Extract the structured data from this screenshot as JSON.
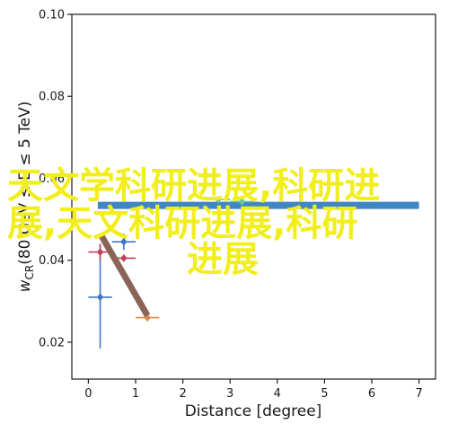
{
  "chart_data": {
    "type": "scatter",
    "xlabel": "Distance [degree]",
    "ylabel": "w",
    "ylabel_sub": "CR",
    "ylabel_rest": "(80 GeV ≤ E ≤ 5 TeV)",
    "xlim": [
      -0.35,
      7.35
    ],
    "ylim": [
      0.011,
      0.1
    ],
    "xticks": [
      0,
      1,
      2,
      3,
      4,
      5,
      6,
      7
    ],
    "yticks": [
      0.02,
      0.04,
      0.06,
      0.08,
      0.1
    ],
    "xtick_labels": [
      "0",
      "1",
      "2",
      "3",
      "4",
      "5",
      "6",
      "7"
    ],
    "ytick_labels": [
      "0.02",
      "0.04",
      "0.06",
      "0.08",
      "0.10"
    ],
    "grid": false,
    "band": {
      "x0": 0.2,
      "x1": 7.0,
      "y": 0.0534,
      "color": "#3f86c4"
    },
    "series": [
      {
        "color": "#3f76c4",
        "marker": "diamond",
        "points": [
          {
            "x": 0.25,
            "y": 0.031,
            "xerr": 0.25,
            "yerr_low": 0.0125,
            "yerr_high": 0.013
          },
          {
            "x": 0.75,
            "y": 0.0445,
            "xerr": 0.25,
            "yerr_low": 0.002,
            "yerr_high": 0.002
          }
        ]
      },
      {
        "color": "#c23e5a",
        "marker": "diamond",
        "points": [
          {
            "x": 0.25,
            "y": 0.042,
            "xerr": 0.25,
            "yerr_low": 0.002,
            "yerr_high": 0.002
          },
          {
            "x": 0.75,
            "y": 0.0405,
            "xerr": 0.25,
            "yerr_low": 0.0,
            "yerr_high": 0.0
          }
        ]
      },
      {
        "color": "#e0884a",
        "marker": "diamond",
        "points": [
          {
            "x": 1.25,
            "y": 0.026,
            "xerr": 0.25,
            "yerr_low": 0.0,
            "yerr_high": 0.0
          }
        ]
      },
      {
        "color": "#6cc490",
        "marker": "diamond",
        "points": [
          {
            "x": 2.75,
            "y": 0.0548,
            "xerr": 0.25,
            "yerr_low": 0.0,
            "yerr_high": 0.0
          },
          {
            "x": 3.25,
            "y": 0.0543,
            "xerr": 0.25,
            "yerr_low": 0.0,
            "yerr_high": 0.0
          }
        ]
      }
    ],
    "trend_line": {
      "x": [
        0.25,
        1.25
      ],
      "y": [
        0.0465,
        0.0265
      ],
      "color": "#8a6457"
    }
  },
  "watermark": {
    "lines": [
      "天文学科研进展,科研进",
      "展,天文科研进展,科研",
      "进展"
    ],
    "color": "#f2ee1e"
  }
}
